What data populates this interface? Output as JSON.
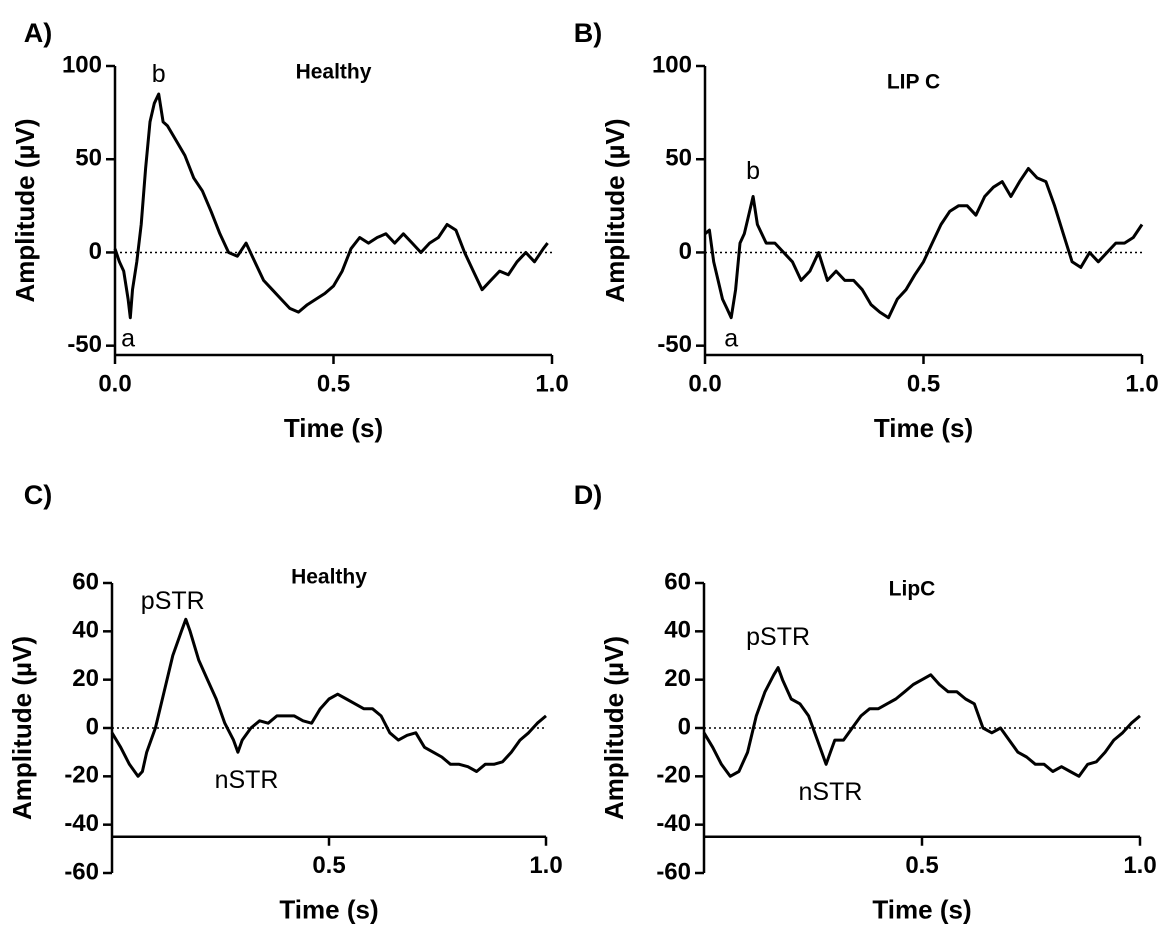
{
  "chart_data": [
    {
      "type": "line",
      "panel_label": "A)",
      "title": "Healthy",
      "xlabel": "Time (s)",
      "ylabel": "Amplitude (µV)",
      "color": "#000000",
      "xlim": [
        0,
        1
      ],
      "xticks": [
        {
          "value": 0,
          "label": "0.0"
        },
        0.5,
        {
          "value": 1,
          "label": "1.0"
        }
      ],
      "ylim": [
        -55,
        100
      ],
      "yticks": [
        -50,
        0,
        50,
        100
      ],
      "reference_line": 0,
      "x": [
        0,
        0.01,
        0.02,
        0.03,
        0.035,
        0.04,
        0.05,
        0.06,
        0.07,
        0.08,
        0.09,
        0.1,
        0.11,
        0.12,
        0.14,
        0.16,
        0.18,
        0.2,
        0.22,
        0.24,
        0.26,
        0.28,
        0.3,
        0.32,
        0.34,
        0.36,
        0.38,
        0.4,
        0.42,
        0.44,
        0.46,
        0.48,
        0.5,
        0.52,
        0.54,
        0.56,
        0.58,
        0.6,
        0.62,
        0.64,
        0.66,
        0.68,
        0.7,
        0.72,
        0.74,
        0.76,
        0.78,
        0.8,
        0.82,
        0.84,
        0.86,
        0.88,
        0.9,
        0.92,
        0.94,
        0.96,
        0.98,
        0.99
      ],
      "values": [
        2,
        -5,
        -10,
        -25,
        -35,
        -20,
        -5,
        15,
        45,
        70,
        80,
        85,
        70,
        68,
        60,
        52,
        40,
        33,
        22,
        10,
        0,
        -2,
        5,
        -5,
        -15,
        -20,
        -25,
        -30,
        -32,
        -28,
        -25,
        -22,
        -18,
        -10,
        2,
        8,
        5,
        8,
        10,
        5,
        10,
        5,
        0,
        5,
        8,
        15,
        12,
        0,
        -10,
        -20,
        -15,
        -10,
        -12,
        -5,
        0,
        -5,
        2,
        5
      ],
      "annotations": [
        {
          "text": "a",
          "x": 0.03,
          "y": -47
        },
        {
          "text": "b",
          "x": 0.1,
          "y": 95
        }
      ]
    },
    {
      "type": "line",
      "panel_label": "B)",
      "title": "LIP C",
      "xlabel": "Time (s)",
      "ylabel": "Amplitude (µV)",
      "color": "#000000",
      "xlim": [
        0,
        1
      ],
      "xticks": [
        {
          "value": 0,
          "label": "0.0"
        },
        0.5,
        {
          "value": 1,
          "label": "1.0"
        }
      ],
      "ylim": [
        -55,
        100
      ],
      "yticks": [
        -50,
        0,
        50,
        100
      ],
      "reference_line": 0,
      "x": [
        0,
        0.01,
        0.02,
        0.03,
        0.04,
        0.05,
        0.06,
        0.07,
        0.08,
        0.09,
        0.1,
        0.11,
        0.12,
        0.14,
        0.16,
        0.18,
        0.2,
        0.22,
        0.24,
        0.26,
        0.28,
        0.3,
        0.32,
        0.34,
        0.36,
        0.38,
        0.4,
        0.42,
        0.44,
        0.46,
        0.48,
        0.5,
        0.52,
        0.54,
        0.56,
        0.58,
        0.6,
        0.62,
        0.64,
        0.66,
        0.68,
        0.7,
        0.72,
        0.74,
        0.76,
        0.78,
        0.8,
        0.82,
        0.84,
        0.86,
        0.88,
        0.9,
        0.92,
        0.94,
        0.96,
        0.98,
        1
      ],
      "values": [
        10,
        12,
        -5,
        -15,
        -25,
        -30,
        -35,
        -20,
        5,
        10,
        20,
        30,
        15,
        5,
        5,
        0,
        -5,
        -15,
        -10,
        0,
        -15,
        -10,
        -15,
        -15,
        -20,
        -28,
        -32,
        -35,
        -25,
        -20,
        -12,
        -5,
        5,
        15,
        22,
        25,
        25,
        20,
        30,
        35,
        38,
        30,
        38,
        45,
        40,
        38,
        25,
        10,
        -5,
        -8,
        0,
        -5,
        0,
        5,
        5,
        8,
        15
      ],
      "annotations": [
        {
          "text": "a",
          "x": 0.06,
          "y": -47
        },
        {
          "text": "b",
          "x": 0.11,
          "y": 43
        }
      ]
    },
    {
      "type": "line",
      "panel_label": "C)",
      "title": "Healthy",
      "xlabel": "Time (s)",
      "ylabel": "Amplitude (µV)",
      "color": "#000000",
      "xlim": [
        0,
        1
      ],
      "xticks": [
        0.5,
        {
          "value": 1,
          "label": "1.0"
        }
      ],
      "xaxis_at": -45,
      "ylim": [
        -60,
        60
      ],
      "yticks": [
        -60,
        -40,
        -20,
        0,
        20,
        40,
        60
      ],
      "reference_line": 0,
      "x": [
        0,
        0.02,
        0.04,
        0.06,
        0.07,
        0.08,
        0.1,
        0.12,
        0.14,
        0.16,
        0.17,
        0.18,
        0.2,
        0.22,
        0.24,
        0.26,
        0.28,
        0.29,
        0.3,
        0.32,
        0.34,
        0.36,
        0.38,
        0.4,
        0.42,
        0.44,
        0.46,
        0.48,
        0.5,
        0.52,
        0.54,
        0.56,
        0.58,
        0.6,
        0.62,
        0.64,
        0.66,
        0.68,
        0.7,
        0.72,
        0.74,
        0.76,
        0.78,
        0.8,
        0.82,
        0.84,
        0.86,
        0.88,
        0.9,
        0.92,
        0.94,
        0.96,
        0.98,
        1
      ],
      "values": [
        -2,
        -8,
        -15,
        -20,
        -18,
        -10,
        0,
        15,
        30,
        40,
        45,
        40,
        28,
        20,
        12,
        2,
        -5,
        -10,
        -5,
        0,
        3,
        2,
        5,
        5,
        5,
        3,
        2,
        8,
        12,
        14,
        12,
        10,
        8,
        8,
        5,
        -2,
        -5,
        -3,
        -2,
        -8,
        -10,
        -12,
        -15,
        -15,
        -16,
        -18,
        -15,
        -15,
        -14,
        -10,
        -5,
        -2,
        2,
        5
      ],
      "annotations": [
        {
          "text": "pSTR",
          "x": 0.14,
          "y": 52
        },
        {
          "text": "nSTR",
          "x": 0.31,
          "y": -22
        }
      ]
    },
    {
      "type": "line",
      "panel_label": "D)",
      "title": "LipC",
      "xlabel": "Time (s)",
      "ylabel": "Amplitude (µV)",
      "color": "#000000",
      "xlim": [
        0,
        1
      ],
      "xticks": [
        0.5,
        {
          "value": 1,
          "label": "1.0"
        }
      ],
      "xaxis_at": -45,
      "ylim": [
        -60,
        60
      ],
      "yticks": [
        -60,
        -40,
        -20,
        0,
        20,
        40,
        60
      ],
      "reference_line": 0,
      "x": [
        0,
        0.02,
        0.04,
        0.06,
        0.08,
        0.1,
        0.12,
        0.14,
        0.16,
        0.17,
        0.18,
        0.2,
        0.22,
        0.24,
        0.26,
        0.28,
        0.29,
        0.3,
        0.32,
        0.34,
        0.36,
        0.38,
        0.4,
        0.42,
        0.44,
        0.46,
        0.48,
        0.5,
        0.52,
        0.54,
        0.56,
        0.58,
        0.6,
        0.62,
        0.64,
        0.66,
        0.68,
        0.7,
        0.72,
        0.74,
        0.76,
        0.78,
        0.8,
        0.82,
        0.84,
        0.86,
        0.88,
        0.9,
        0.92,
        0.94,
        0.96,
        0.98,
        1
      ],
      "values": [
        -2,
        -8,
        -15,
        -20,
        -18,
        -10,
        5,
        15,
        22,
        25,
        20,
        12,
        10,
        5,
        -5,
        -15,
        -10,
        -5,
        -5,
        0,
        5,
        8,
        8,
        10,
        12,
        15,
        18,
        20,
        22,
        18,
        15,
        15,
        12,
        10,
        0,
        -2,
        0,
        -5,
        -10,
        -12,
        -15,
        -15,
        -18,
        -16,
        -18,
        -20,
        -15,
        -14,
        -10,
        -5,
        -2,
        2,
        5
      ],
      "annotations": [
        {
          "text": "pSTR",
          "x": 0.17,
          "y": 37
        },
        {
          "text": "nSTR",
          "x": 0.29,
          "y": -27
        }
      ]
    }
  ]
}
